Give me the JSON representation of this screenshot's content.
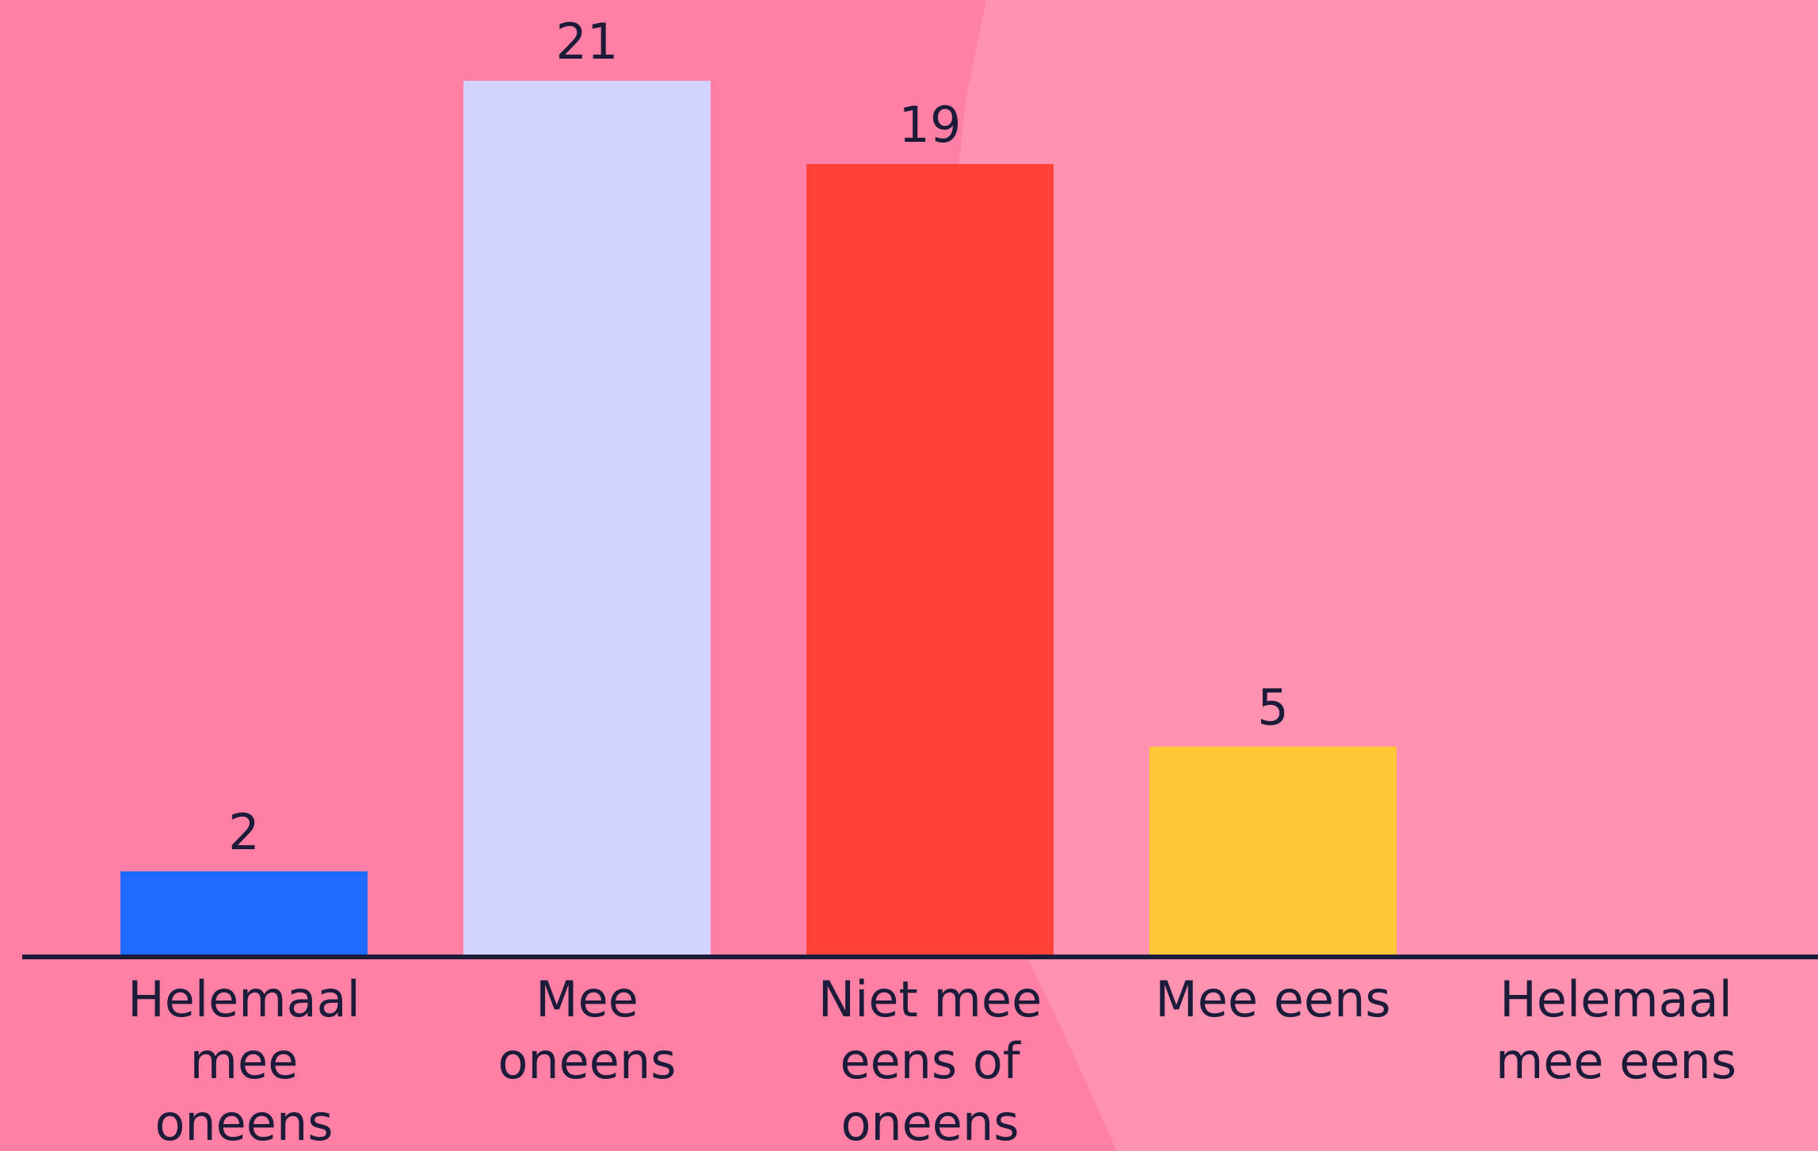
{
  "chart_data": {
    "type": "bar",
    "categories": [
      "Helemaal mee oneens",
      "Mee oneens",
      "Niet mee eens of oneens",
      "Mee eens",
      "Helemaal mee eens"
    ],
    "category_lines": [
      [
        "Helemaal",
        "mee",
        "oneens"
      ],
      [
        "Mee",
        "oneens"
      ],
      [
        "Niet mee",
        "eens of",
        "oneens"
      ],
      [
        "Mee eens"
      ],
      [
        "Helemaal",
        "mee eens"
      ]
    ],
    "values": [
      2,
      21,
      19,
      5,
      0
    ],
    "value_labels": [
      "2",
      "21",
      "19",
      "5",
      ""
    ],
    "bar_colors": [
      "#1f6bff",
      "#d2d3ff",
      "#ff4138",
      "#ffc637",
      "#ff8fb0"
    ],
    "ylim": [
      0,
      21
    ],
    "grid": false,
    "legend": "none",
    "title": "",
    "xlabel": "",
    "ylabel": ""
  },
  "colors": {
    "background_left": "#ff80a4",
    "background_right": "#ff91b1",
    "axis": "#1c1b3a",
    "text": "#1c1b3a"
  }
}
